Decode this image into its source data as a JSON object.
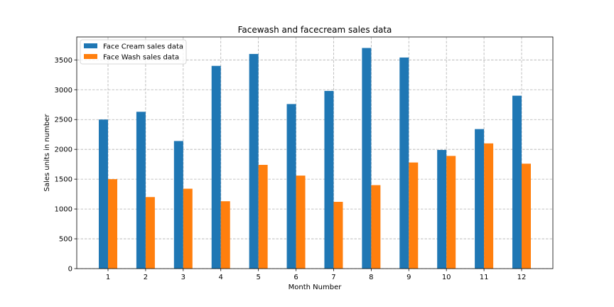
{
  "chart_data": {
    "type": "bar",
    "title": "Facewash and facecream sales data",
    "xlabel": "Month Number",
    "ylabel": "Sales units in number",
    "categories": [
      "1",
      "2",
      "3",
      "4",
      "5",
      "6",
      "7",
      "8",
      "9",
      "10",
      "11",
      "12"
    ],
    "series": [
      {
        "name": "Face Cream sales data",
        "color": "#1f77b4",
        "values": [
          2500,
          2630,
          2140,
          3400,
          3600,
          2760,
          2980,
          3700,
          3540,
          1990,
          2340,
          2900
        ]
      },
      {
        "name": "Face Wash sales data",
        "color": "#ff7f0e",
        "values": [
          1500,
          1200,
          1340,
          1130,
          1740,
          1560,
          1120,
          1400,
          1780,
          1890,
          2100,
          1760
        ]
      }
    ],
    "ylim": [
      0,
      3885
    ],
    "yticks": [
      0,
      500,
      1000,
      1500,
      2000,
      2500,
      3000,
      3500
    ],
    "grid": true,
    "legend_position": "top-left"
  }
}
